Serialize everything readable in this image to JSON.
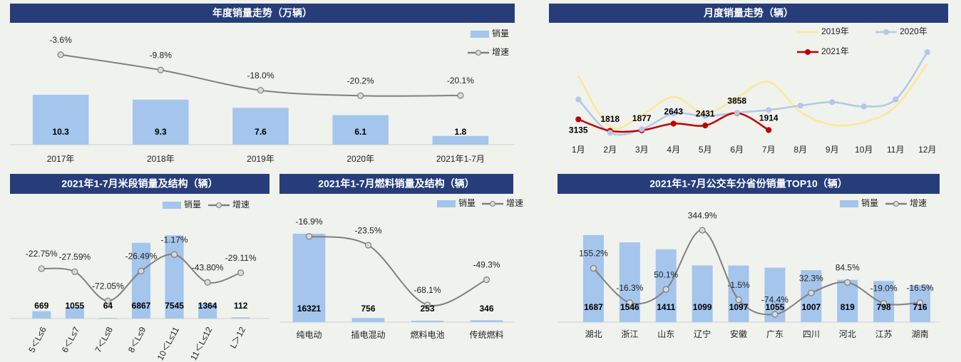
{
  "chart_data": [
    {
      "type": "bar",
      "title": "年度销量走势（万辆）",
      "categories": [
        "2017年",
        "2018年",
        "2019年",
        "2020年",
        "2021年1-7月"
      ],
      "series": [
        {
          "name": "销量",
          "color": "#a4c5ec",
          "labels": true,
          "values": [
            10.3,
            9.3,
            7.6,
            6.1,
            1.8
          ]
        },
        {
          "name": "增速",
          "type": "line",
          "axis": "y2",
          "color": "#808080",
          "marker": true,
          "values": [
            -3.6,
            -9.8,
            -18.0,
            -20.2,
            -20.1
          ],
          "value_labels": [
            "-3.6%",
            "-9.8%",
            "-18.0%",
            "-20.2%",
            "-20.1%"
          ]
        }
      ],
      "ylim": [
        0,
        24
      ],
      "y2lim": [
        -40,
        7
      ]
    },
    {
      "type": "line",
      "title": "月度销量走势（辆）",
      "categories": [
        "1月",
        "2月",
        "3月",
        "4月",
        "5月",
        "6月",
        "7月",
        "8月",
        "9月",
        "10月",
        "11月",
        "12月"
      ],
      "series": [
        {
          "name": "2019年",
          "color": "#ffe699",
          "values": [
            8100,
            2300,
            3600,
            5700,
            3800,
            5600,
            7400,
            4000,
            2500,
            2800,
            4600,
            9500
          ]
        },
        {
          "name": "2020年",
          "color": "#b4c7e7",
          "marker": true,
          "values": [
            5400,
            1600,
            2000,
            3800,
            3500,
            3900,
            4200,
            4700,
            5100,
            4600,
            5400,
            10800
          ]
        },
        {
          "name": "2021年",
          "color": "#c00000",
          "marker": true,
          "labels": true,
          "values": [
            3135,
            1818,
            1877,
            2643,
            2431,
            3858,
            1914,
            null,
            null,
            null,
            null,
            null
          ]
        }
      ],
      "ylim": [
        0,
        13500
      ]
    },
    {
      "type": "bar",
      "title": "2021年1-7月米段销量及结构（辆）",
      "categories": [
        "5＜L≤6",
        "6＜L≤7",
        "7＜L≤8",
        "8＜L≤9",
        "10＜L≤11",
        "11＜L≤12",
        "L＞12"
      ],
      "series": [
        {
          "name": "销量",
          "color": "#a4c5ec",
          "labels": true,
          "values": [
            669,
            1055,
            64,
            6867,
            7545,
            1364,
            112
          ]
        },
        {
          "name": "增速",
          "type": "line",
          "axis": "y2",
          "color": "#808080",
          "marker": true,
          "values": [
            -22.75,
            -27.59,
            -72.05,
            -26.49,
            -1.17,
            -43.8,
            -29.11
          ],
          "value_labels": [
            "-22.75%",
            "-27.59%",
            "-72.05%",
            "-26.49%",
            "-1.17%",
            "-43.80%",
            "-29.11%"
          ]
        }
      ],
      "ylim": [
        0,
        9500
      ],
      "y2lim": [
        -99,
        61
      ]
    },
    {
      "type": "bar",
      "title": "2021年1-7月燃料销量及结构（辆）",
      "categories": [
        "纯电动",
        "插电混动",
        "燃料电池",
        "传统燃料"
      ],
      "series": [
        {
          "name": "销量",
          "color": "#a4c5ec",
          "labels": true,
          "values": [
            16321,
            756,
            253,
            346
          ]
        },
        {
          "name": "增速",
          "type": "line",
          "axis": "y2",
          "color": "#808080",
          "marker": true,
          "values": [
            -16.9,
            -23.5,
            -68.1,
            -49.3
          ],
          "value_labels": [
            "-16.9%",
            "-23.5%",
            "-68.1%",
            "-49.3%"
          ]
        }
      ],
      "ylim": [
        0,
        20000
      ],
      "y2lim": [
        -81,
        0
      ]
    },
    {
      "type": "bar",
      "title": "2021年1-7月公交车分省份销量TOP10（辆）",
      "categories": [
        "湖北",
        "浙江",
        "山东",
        "辽宁",
        "安徽",
        "广东",
        "四川",
        "河北",
        "江苏",
        "湖南"
      ],
      "series": [
        {
          "name": "销量",
          "color": "#a4c5ec",
          "labels": true,
          "values": [
            1687,
            1546,
            1411,
            1099,
            1097,
            1055,
            1007,
            819,
            798,
            716
          ]
        },
        {
          "name": "增速",
          "type": "line",
          "axis": "y2",
          "color": "#808080",
          "marker": true,
          "values": [
            155.2,
            -16.3,
            50.1,
            344.9,
            -1.5,
            -74.4,
            32.3,
            84.5,
            -19.0,
            -16.5
          ],
          "value_labels": [
            "155.2%",
            "-16.3%",
            "50.1%",
            "344.9%",
            "-1.5%",
            "-74.4%",
            "32.3%",
            "84.5%",
            "-19.0%",
            "-16.5%"
          ]
        }
      ],
      "ylim": [
        0,
        2100
      ],
      "y2lim": [
        -113,
        427
      ]
    }
  ]
}
